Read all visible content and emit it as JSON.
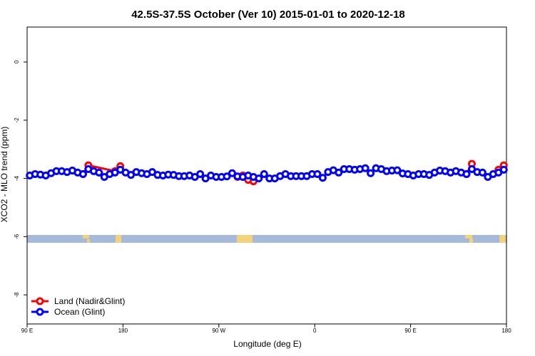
{
  "chart_data": {
    "type": "line",
    "title": "42.5S-37.5S October (Ver 10)   2015-01-01 to 2020-12-18",
    "x_label": "Longitude (deg E)",
    "y_label": "XCO2 - MLO trend (ppm)",
    "xlim": [
      90,
      540
    ],
    "ylim": [
      -9,
      1.2
    ],
    "xticks": [
      {
        "value": 90,
        "label": "90 E"
      },
      180,
      {
        "value": 270,
        "label": "90 W"
      },
      {
        "value": 360,
        "label": "0"
      },
      {
        "value": 450,
        "label": "90 E"
      },
      {
        "value": 540,
        "label": "180"
      }
    ],
    "yticks": [
      0,
      -2,
      -4,
      -6,
      -8
    ],
    "legend": "bottom-left",
    "series": [
      {
        "name": "Land (Nadir&Glint)",
        "color": "#ff0000",
        "x": [
          142.5,
          147.5,
          172.5,
          177.5,
          232.5,
          287.5,
          292.5,
          297.5,
          302.5,
          402.5,
          502.5,
          507.5,
          520,
          532.5,
          537.5
        ],
        "values": [
          -3.85,
          -3.55,
          -3.75,
          -3.58,
          null,
          -3.95,
          -3.9,
          -4.05,
          -4.1,
          null,
          -3.85,
          -3.5,
          null,
          -3.7,
          -3.55
        ]
      },
      {
        "name": "Ocean (Glint)",
        "color": "#0000ff",
        "x": [
          92.5,
          97.5,
          102.5,
          107.5,
          112.5,
          117.5,
          122.5,
          127.5,
          132.5,
          137.5,
          142.5,
          147.5,
          152.5,
          157.5,
          162.5,
          167.5,
          172.5,
          177.5,
          182.5,
          187.5,
          192.5,
          197.5,
          202.5,
          207.5,
          212.5,
          217.5,
          222.5,
          227.5,
          232.5,
          237.5,
          242.5,
          247.5,
          252.5,
          257.5,
          262.5,
          267.5,
          272.5,
          277.5,
          282.5,
          287.5,
          292.5,
          297.5,
          302.5,
          307.5,
          312.5,
          317.5,
          322.5,
          327.5,
          332.5,
          337.5,
          342.5,
          347.5,
          352.5,
          357.5,
          362.5,
          367.5,
          372.5,
          377.5,
          382.5,
          387.5,
          392.5,
          397.5,
          402.5,
          407.5,
          412.5,
          417.5,
          422.5,
          427.5,
          432.5,
          437.5,
          442.5,
          447.5,
          452.5,
          457.5,
          462.5,
          467.5,
          472.5,
          477.5,
          482.5,
          487.5,
          492.5,
          497.5,
          502.5,
          507.5,
          512.5,
          517.5,
          522.5,
          527.5,
          532.5,
          537.5
        ],
        "values": [
          -3.9,
          -3.85,
          -3.87,
          -3.9,
          -3.82,
          -3.75,
          -3.75,
          -3.78,
          -3.73,
          -3.8,
          -3.85,
          -3.68,
          -3.75,
          -3.8,
          -3.95,
          -3.85,
          -3.8,
          -3.7,
          -3.8,
          -3.88,
          -3.78,
          -3.82,
          -3.85,
          -3.78,
          -3.88,
          -3.9,
          -3.87,
          -3.88,
          -3.92,
          -3.92,
          -3.9,
          -3.95,
          -3.85,
          -4.0,
          -3.9,
          -3.95,
          -3.95,
          -3.93,
          -3.82,
          -3.93,
          -3.95,
          -3.9,
          -3.95,
          -4.0,
          -3.85,
          -4.0,
          -4.0,
          -3.92,
          -3.85,
          -3.92,
          -3.92,
          -3.92,
          -3.92,
          -3.85,
          -3.85,
          -3.98,
          -3.78,
          -3.72,
          -3.8,
          -3.68,
          -3.68,
          -3.7,
          -3.68,
          -3.65,
          -3.82,
          -3.65,
          -3.68,
          -3.75,
          -3.73,
          -3.72,
          -3.83,
          -3.85,
          -3.9,
          -3.85,
          -3.85,
          -3.88,
          -3.8,
          -3.73,
          -3.75,
          -3.8,
          -3.75,
          -3.8,
          -3.85,
          -3.68,
          -3.78,
          -3.8,
          -3.95,
          -3.85,
          -3.8,
          -3.7
        ]
      }
    ]
  }
}
